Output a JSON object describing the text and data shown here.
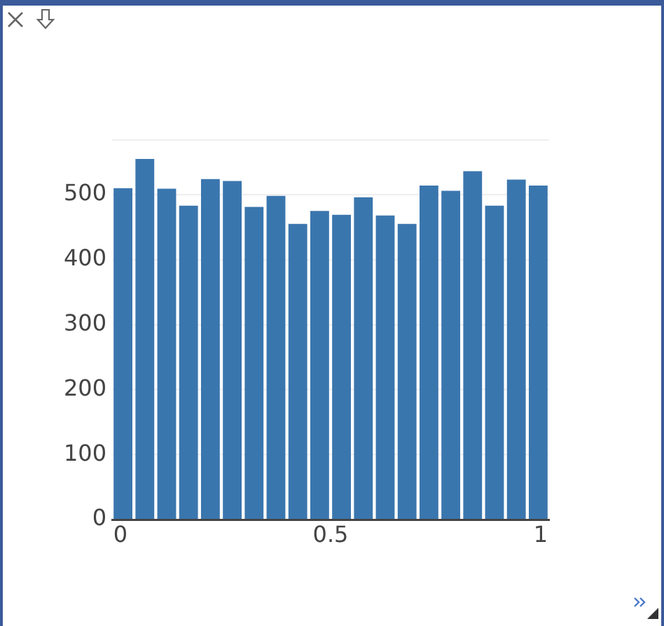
{
  "chart_data": {
    "type": "histogram",
    "color": "#3a76ae",
    "bins": [
      -0.02,
      0.032,
      0.084,
      0.136,
      0.188,
      0.24,
      0.292,
      0.344,
      0.396,
      0.448,
      0.5,
      0.552,
      0.604,
      0.656,
      0.708,
      0.76,
      0.812,
      0.864,
      0.916,
      0.968,
      1.02
    ],
    "values": [
      510,
      555,
      509,
      483,
      524,
      521,
      481,
      498,
      455,
      475,
      469,
      496,
      468,
      455,
      514,
      506,
      536,
      483,
      523,
      514
    ],
    "xlim": [
      -0.02,
      1.02
    ],
    "xticks": [
      0,
      0.5,
      1
    ],
    "ylim": [
      0,
      584
    ],
    "yticks": [
      0,
      100,
      200,
      300,
      400,
      500,
      {
        "value": 584,
        "label": null
      }
    ],
    "grid": "y"
  }
}
